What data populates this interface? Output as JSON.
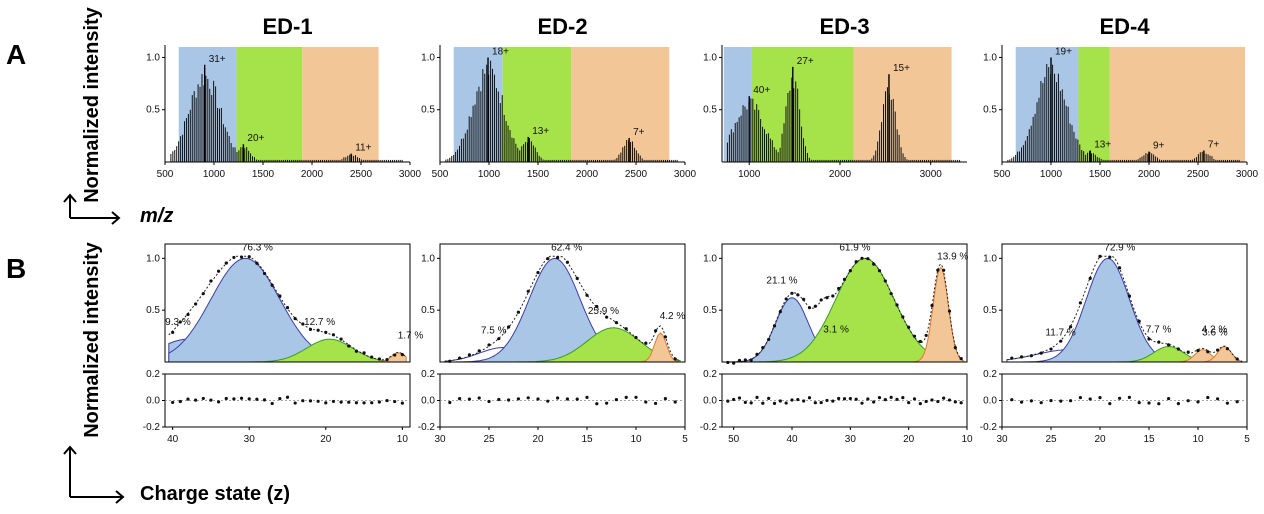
{
  "panel_labels": {
    "a": "A",
    "b": "B"
  },
  "ylabel_top": "Normalized intensity",
  "xlabel_top": "m/z",
  "ylabel_bottom": "Normalized intensity",
  "xlabel_bottom": "Charge state (z)",
  "colors": {
    "blue": "#a9c6e6",
    "green": "#a6e34a",
    "orange": "#f3c697",
    "fit_blue": "#3b3fa6",
    "fit_green": "#3a9a2a",
    "fit_orange": "#e0792a"
  },
  "chart_data": [
    {
      "type": "line",
      "panel": "A",
      "title": "ED-1",
      "xlim": [
        500,
        3000
      ],
      "ylim": [
        0,
        1.1
      ],
      "xticks": [
        "500",
        "1000",
        "1500",
        "2000",
        "2500",
        "3000"
      ],
      "yticks": [
        "0.5",
        "1.0"
      ],
      "regions": [
        {
          "from": 640,
          "to": 1230,
          "color": "blue"
        },
        {
          "from": 1230,
          "to": 1900,
          "color": "green"
        },
        {
          "from": 1900,
          "to": 2680,
          "color": "orange"
        }
      ],
      "peaks": [
        {
          "label": "31+",
          "x": 905,
          "y": 0.93
        },
        {
          "label": "20+",
          "x": 1300,
          "y": 0.17
        },
        {
          "label": "11+",
          "x": 2400,
          "y": 0.08
        }
      ]
    },
    {
      "type": "line",
      "panel": "A",
      "title": "ED-2",
      "xlim": [
        500,
        3000
      ],
      "ylim": [
        0,
        1.1
      ],
      "xticks": [
        "500",
        "1000",
        "1500",
        "2000",
        "2500",
        "3000"
      ],
      "yticks": [
        "0.5",
        "1.0"
      ],
      "regions": [
        {
          "from": 640,
          "to": 1140,
          "color": "blue"
        },
        {
          "from": 1140,
          "to": 1840,
          "color": "green"
        },
        {
          "from": 1840,
          "to": 2840,
          "color": "orange"
        }
      ],
      "peaks": [
        {
          "label": "18+",
          "x": 990,
          "y": 1.0
        },
        {
          "label": "13+",
          "x": 1400,
          "y": 0.24
        },
        {
          "label": "7+",
          "x": 2430,
          "y": 0.23
        }
      ]
    },
    {
      "type": "line",
      "panel": "A",
      "title": "ED-3",
      "xlim": [
        700,
        3400
      ],
      "ylim": [
        0,
        1.1
      ],
      "xticks": [
        "1000",
        "2000",
        "3000"
      ],
      "yticks": [
        "0.5",
        "1.0"
      ],
      "regions": [
        {
          "from": 720,
          "to": 1030,
          "color": "blue"
        },
        {
          "from": 1030,
          "to": 2150,
          "color": "green"
        },
        {
          "from": 2150,
          "to": 3230,
          "color": "orange"
        }
      ],
      "peaks": [
        {
          "label": "40+",
          "x": 1000,
          "y": 0.63
        },
        {
          "label": "27+",
          "x": 1480,
          "y": 0.91
        },
        {
          "label": "15+",
          "x": 2540,
          "y": 0.84
        }
      ]
    },
    {
      "type": "line",
      "panel": "A",
      "title": "ED-4",
      "xlim": [
        500,
        3000
      ],
      "ylim": [
        0,
        1.1
      ],
      "xticks": [
        "500",
        "1000",
        "1500",
        "2000",
        "2500",
        "3000"
      ],
      "yticks": [
        "0.5",
        "1.0"
      ],
      "regions": [
        {
          "from": 640,
          "to": 1280,
          "color": "blue"
        },
        {
          "from": 1280,
          "to": 1600,
          "color": "green"
        },
        {
          "from": 1600,
          "to": 2980,
          "color": "orange"
        }
      ],
      "peaks": [
        {
          "label": "19+",
          "x": 1000,
          "y": 1.0
        },
        {
          "label": "13+",
          "x": 1400,
          "y": 0.11
        },
        {
          "label": "9+",
          "x": 2000,
          "y": 0.1
        },
        {
          "label": "7+",
          "x": 2560,
          "y": 0.11
        }
      ]
    },
    {
      "type": "area",
      "panel": "B",
      "xlim": [
        41,
        9
      ],
      "ylim": [
        0,
        1.1
      ],
      "reslim": [
        -0.2,
        0.2
      ],
      "xticks": [
        "40",
        "30",
        "20",
        "10"
      ],
      "yticks": [
        "0.5",
        "1.0"
      ],
      "resticks": [
        "0.2",
        "0.0",
        "-0.2"
      ],
      "components": [
        {
          "label": "9.3 %",
          "mu": 38,
          "sigma": 3.8,
          "amp": 0.22,
          "color": "blue"
        },
        {
          "label": "76.3 %",
          "mu": 30.5,
          "sigma": 4.5,
          "amp": 1.0,
          "color": "blue"
        },
        {
          "label": "12.7 %",
          "mu": 19.5,
          "sigma": 3.0,
          "amp": 0.22,
          "color": "green"
        },
        {
          "label": "1.7 %",
          "mu": 10.5,
          "sigma": 0.9,
          "amp": 0.09,
          "color": "orange"
        }
      ]
    },
    {
      "type": "area",
      "panel": "B",
      "xlim": [
        30,
        5
      ],
      "ylim": [
        0,
        1.1
      ],
      "reslim": [
        -0.2,
        0.2
      ],
      "xticks": [
        "30",
        "25",
        "20",
        "15",
        "10",
        "5"
      ],
      "yticks": [
        "0.5",
        "1.0"
      ],
      "resticks": [
        "0.2",
        "0.0",
        "-0.2"
      ],
      "components": [
        {
          "label": "7.5 %",
          "mu": 23.5,
          "sigma": 2.5,
          "amp": 0.14,
          "color": "blue"
        },
        {
          "label": "62.4 %",
          "mu": 18.3,
          "sigma": 2.6,
          "amp": 1.0,
          "color": "blue"
        },
        {
          "label": "25.9 %",
          "mu": 12.3,
          "sigma": 2.7,
          "amp": 0.33,
          "color": "green"
        },
        {
          "label": "4.2 %",
          "mu": 7.5,
          "sigma": 0.6,
          "amp": 0.28,
          "color": "orange"
        }
      ]
    },
    {
      "type": "area",
      "panel": "B",
      "xlim": [
        52,
        10
      ],
      "ylim": [
        0,
        1.1
      ],
      "reslim": [
        -0.2,
        0.2
      ],
      "xticks": [
        "50",
        "40",
        "30",
        "20",
        "10"
      ],
      "yticks": [
        "0.5",
        "1.0"
      ],
      "resticks": [
        "0.2",
        "0.0",
        "-0.2"
      ],
      "components": [
        {
          "label": "21.1 %",
          "mu": 40,
          "sigma": 2.8,
          "amp": 0.62,
          "color": "blue"
        },
        {
          "label": "3.1 %",
          "mu": 34.5,
          "sigma": 1.2,
          "amp": 0.15,
          "color": "blue"
        },
        {
          "label": "61.9 %",
          "mu": 27.5,
          "sigma": 5.0,
          "amp": 1.0,
          "color": "green"
        },
        {
          "label": "13.9 %",
          "mu": 14.5,
          "sigma": 1.3,
          "amp": 0.91,
          "color": "orange"
        }
      ]
    },
    {
      "type": "area",
      "panel": "B",
      "xlim": [
        30,
        5
      ],
      "ylim": [
        0,
        1.1
      ],
      "reslim": [
        -0.2,
        0.2
      ],
      "xticks": [
        "30",
        "25",
        "20",
        "15",
        "10",
        "5"
      ],
      "yticks": [
        "0.5",
        "1.0"
      ],
      "resticks": [
        "0.2",
        "0.0",
        "-0.2"
      ],
      "components": [
        {
          "label": "11.7 %",
          "mu": 23.0,
          "sigma": 3.5,
          "amp": 0.12,
          "color": "blue"
        },
        {
          "label": "72.9 %",
          "mu": 19.2,
          "sigma": 2.2,
          "amp": 1.0,
          "color": "blue"
        },
        {
          "label": "7.7 %",
          "mu": 13.0,
          "sigma": 1.5,
          "amp": 0.15,
          "color": "green"
        },
        {
          "label": "3.6 %",
          "mu": 9.5,
          "sigma": 0.8,
          "amp": 0.12,
          "color": "orange"
        },
        {
          "label": "4.2 %",
          "mu": 7.3,
          "sigma": 0.7,
          "amp": 0.15,
          "color": "orange"
        }
      ]
    }
  ]
}
